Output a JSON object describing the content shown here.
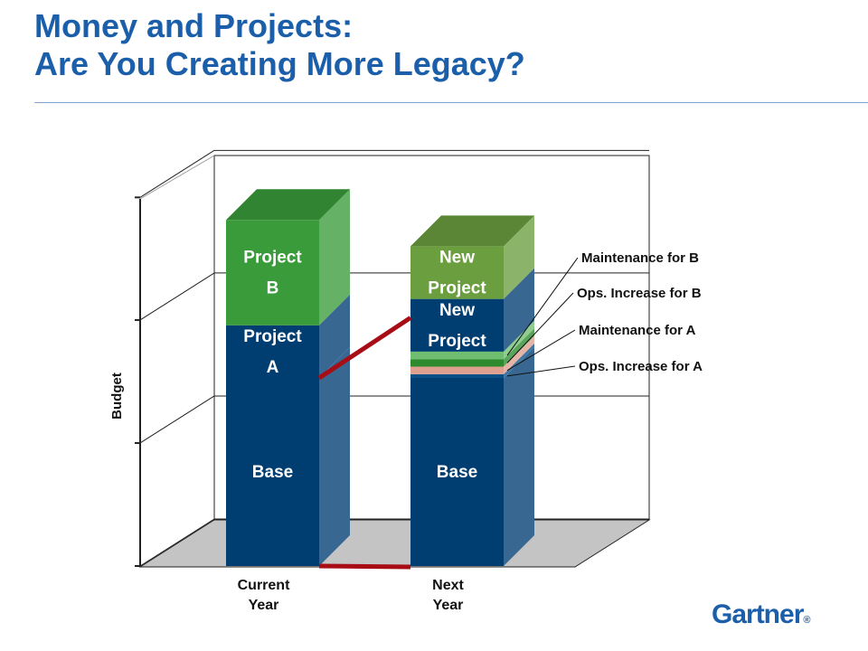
{
  "title_line1": "Money and Projects:",
  "title_line2": "Are You Creating More Legacy?",
  "logo": "Gartner",
  "chart_data": {
    "type": "bar",
    "stacked": true,
    "three_d": true,
    "ylabel": "Budget",
    "categories": [
      "Current\nYear",
      "Next\nYear"
    ],
    "series": [
      {
        "label": "Base",
        "values": [
          5.0,
          5.0
        ],
        "color": "#003e72"
      },
      {
        "label": "Project\nA",
        "values": [
          1.4,
          0
        ],
        "color": "#003e72"
      },
      {
        "label": "Project\nB",
        "values": [
          2.8,
          0
        ],
        "color": "#3a9b3a"
      },
      {
        "label": "Ops. Increase for A",
        "values": [
          0,
          0.1
        ],
        "color": "#0a4f86"
      },
      {
        "label": "Maintenance for A",
        "values": [
          0,
          0.2
        ],
        "color": "#e0a090"
      },
      {
        "label": "Ops. Increase for B",
        "values": [
          0,
          0.2
        ],
        "color": "#2d8a2d"
      },
      {
        "label": "Maintenance for B",
        "values": [
          0,
          0.2
        ],
        "color": "#6fbd6f"
      },
      {
        "label": "New\nProject",
        "values": [
          0,
          1.4
        ],
        "color": "#003e72"
      },
      {
        "label": "New\nProject",
        "values": [
          0,
          1.4
        ],
        "color": "#6a9e3f"
      }
    ],
    "callouts": [
      "Maintenance for B",
      "Ops. Increase for B",
      "Maintenance for A",
      "Ops. Increase for A"
    ],
    "grid": true,
    "connector_color": "#a80d15"
  }
}
